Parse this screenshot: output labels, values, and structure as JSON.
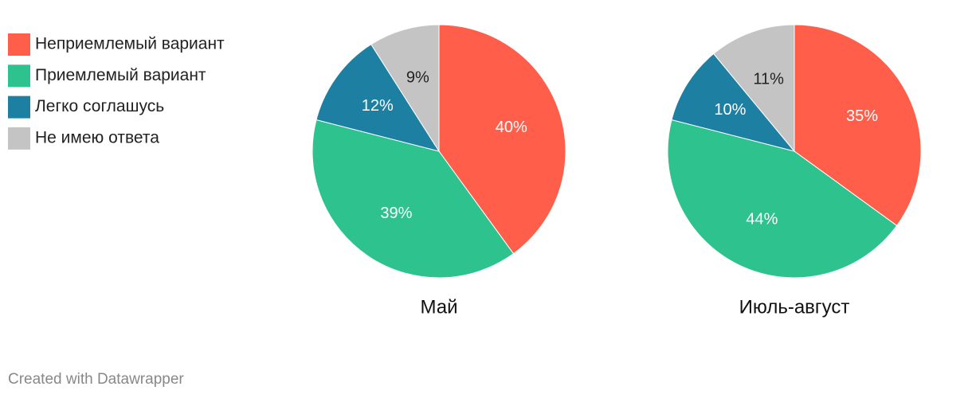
{
  "chart_data": {
    "type": "pie",
    "categories": [
      "Неприемлемый вариант",
      "Приемлемый вариант",
      "Легко соглашусь",
      "Не имею ответа"
    ],
    "colors": [
      "#ff5e4b",
      "#2ec28f",
      "#1d7fa1",
      "#c4c4c4"
    ],
    "series": [
      {
        "name": "Май",
        "values": [
          40,
          39,
          12,
          9
        ],
        "value_labels": [
          "40%",
          "39%",
          "12%",
          "9%"
        ]
      },
      {
        "name": "Июль-август",
        "values": [
          35,
          44,
          10,
          11
        ],
        "value_labels": [
          "35%",
          "44%",
          "10%",
          "11%"
        ]
      }
    ]
  },
  "footer": "Created with Datawrapper"
}
